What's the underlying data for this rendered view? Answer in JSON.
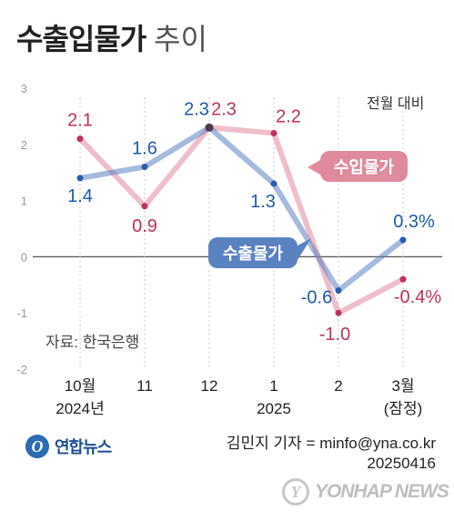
{
  "header": {
    "title": "수출입물가",
    "subtitle": "추이"
  },
  "unit_label": "전월 대비",
  "source_label": "자료: 한국은행",
  "credit": {
    "reporter": "김민지 기자 = minfo@yna.co.kr",
    "date": "20250416"
  },
  "logo": {
    "mark": "O",
    "text": "연합뉴스"
  },
  "watermark": {
    "mark": "Y",
    "text": "YONHAP NEWS"
  },
  "colors": {
    "export": "#5b82c0",
    "import": "#e08a9e",
    "export_text": "#1f5aa6",
    "import_text": "#c0305a"
  },
  "chart_data": {
    "type": "line",
    "categories": [
      "10월",
      "11",
      "12",
      "1",
      "2",
      "3월"
    ],
    "category_sublabels": [
      "2024년",
      "",
      "",
      "2025",
      "",
      "(잠정)"
    ],
    "series": [
      {
        "name": "수출물가",
        "values": [
          1.4,
          1.6,
          2.3,
          1.3,
          -0.6,
          0.3
        ],
        "labels": [
          "1.4",
          "1.6",
          "2.3",
          "1.3",
          "-0.6",
          "0.3%"
        ]
      },
      {
        "name": "수입물가",
        "values": [
          2.1,
          0.9,
          2.3,
          2.2,
          -1.0,
          -0.4
        ],
        "labels": [
          "2.1",
          "0.9",
          "2.3",
          "2.2",
          "-1.0",
          "-0.4%"
        ]
      }
    ],
    "ylim": [
      -2,
      3
    ],
    "yticks": [
      "3",
      "2",
      "1",
      "0",
      "-1",
      "-2"
    ],
    "grid": false,
    "legend": "inline callouts"
  }
}
